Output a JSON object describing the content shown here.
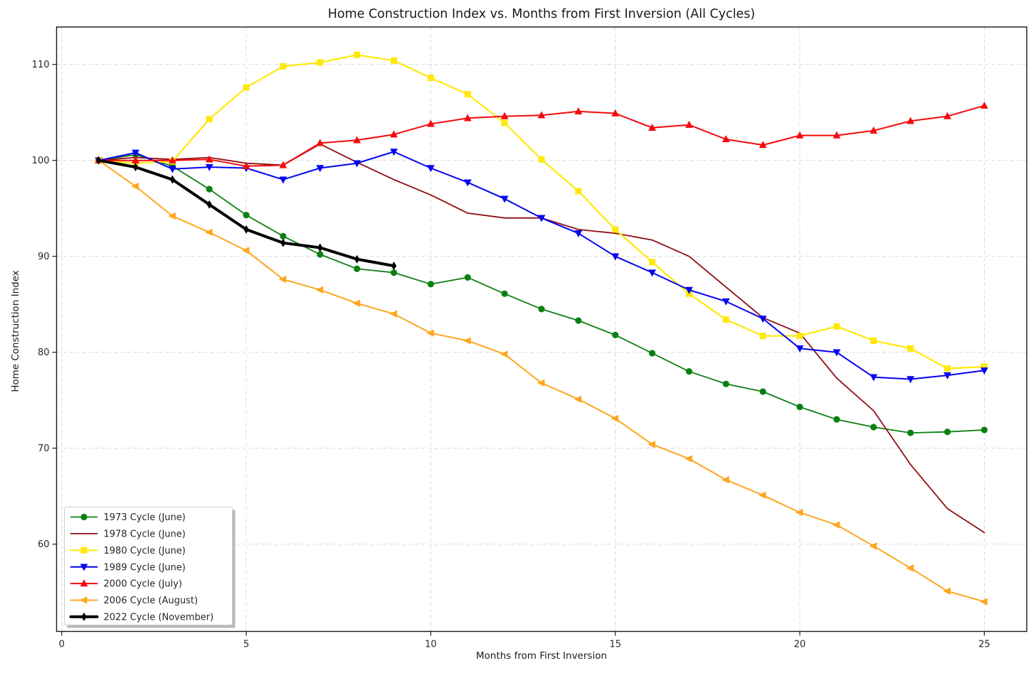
{
  "chart_data": {
    "type": "line",
    "title": "Home Construction Index vs. Months from First Inversion (All Cycles)",
    "xlabel": "Months from First Inversion",
    "ylabel": "Home Construction Index",
    "x": [
      1,
      2,
      3,
      4,
      5,
      6,
      7,
      8,
      9,
      10,
      11,
      12,
      13,
      14,
      15,
      16,
      17,
      18,
      19,
      20,
      21,
      22,
      23,
      24,
      25
    ],
    "xlim": [
      -0.14,
      26.15
    ],
    "ylim": [
      50.9,
      113.9
    ],
    "xticks": [
      0,
      5,
      10,
      15,
      20,
      25
    ],
    "yticks": [
      60,
      70,
      80,
      90,
      100,
      110
    ],
    "grid": "dashed",
    "legend_position": "lower left",
    "series": [
      {
        "name": "1973 Cycle (June)",
        "color": "#0b8012",
        "marker": "circle",
        "line_width": 1.8,
        "values": [
          100,
          100.6,
          99.4,
          97.0,
          94.3,
          92.1,
          90.2,
          88.7,
          88.3,
          87.1,
          87.8,
          86.1,
          84.5,
          83.3,
          81.8,
          79.9,
          78.0,
          76.7,
          75.9,
          74.3,
          73.0,
          72.2,
          71.6,
          71.7,
          71.9
        ]
      },
      {
        "name": "1978 Cycle (June)",
        "color": "#8e0f12",
        "marker": "none",
        "line_width": 1.8,
        "values": [
          100,
          100.3,
          100.1,
          100.3,
          99.7,
          99.5,
          101.7,
          99.8,
          98.0,
          96.4,
          94.5,
          94.0,
          94.0,
          92.8,
          92.4,
          91.7,
          90.0,
          86.8,
          83.6,
          82.0,
          77.3,
          73.9,
          68.3,
          63.7,
          61.2
        ]
      },
      {
        "name": "1980 Cycle (June)",
        "color": "#ffe80a",
        "marker": "square",
        "line_width": 2.2,
        "values": [
          100,
          99.7,
          99.9,
          104.3,
          107.6,
          109.8,
          110.2,
          111.0,
          110.4,
          108.6,
          106.9,
          103.9,
          100.1,
          96.8,
          92.8,
          89.4,
          86.1,
          83.4,
          81.7,
          81.7,
          82.7,
          81.2,
          80.4,
          78.3,
          78.5
        ]
      },
      {
        "name": "1989 Cycle (June)",
        "color": "#0404f1",
        "marker": "triangle-down",
        "line_width": 2.0,
        "values": [
          100,
          100.8,
          99.1,
          99.3,
          99.2,
          98.0,
          99.2,
          99.7,
          100.9,
          99.2,
          97.7,
          96.0,
          94.0,
          92.4,
          90.0,
          88.3,
          86.5,
          85.3,
          83.5,
          80.4,
          80.0,
          77.4,
          77.2,
          77.6,
          78.1
        ]
      },
      {
        "name": "2000 Cycle (July)",
        "color": "#f5090b",
        "marker": "triangle-up",
        "line_width": 2.0,
        "values": [
          100,
          100.0,
          100.0,
          100.1,
          99.4,
          99.5,
          101.8,
          102.1,
          102.7,
          103.8,
          104.4,
          104.6,
          104.7,
          105.1,
          104.9,
          103.4,
          103.7,
          102.2,
          101.6,
          102.6,
          102.6,
          103.1,
          104.1,
          104.6,
          105.7
        ]
      },
      {
        "name": "2006 Cycle (August)",
        "color": "#fea61e",
        "marker": "triangle-left",
        "line_width": 2.0,
        "values": [
          100,
          97.3,
          94.2,
          92.5,
          90.6,
          87.6,
          86.5,
          85.1,
          84.0,
          82.0,
          81.2,
          79.8,
          76.8,
          75.1,
          73.1,
          70.4,
          68.9,
          66.7,
          65.1,
          63.3,
          62.0,
          59.8,
          57.5,
          55.1,
          54.0
        ]
      },
      {
        "name": "2022 Cycle (November)",
        "color": "#000000",
        "marker": "diamond",
        "line_width": 4.0,
        "values": [
          100,
          99.3,
          98.0,
          95.4,
          92.8,
          91.4,
          90.9,
          89.7,
          89.0
        ]
      }
    ]
  }
}
